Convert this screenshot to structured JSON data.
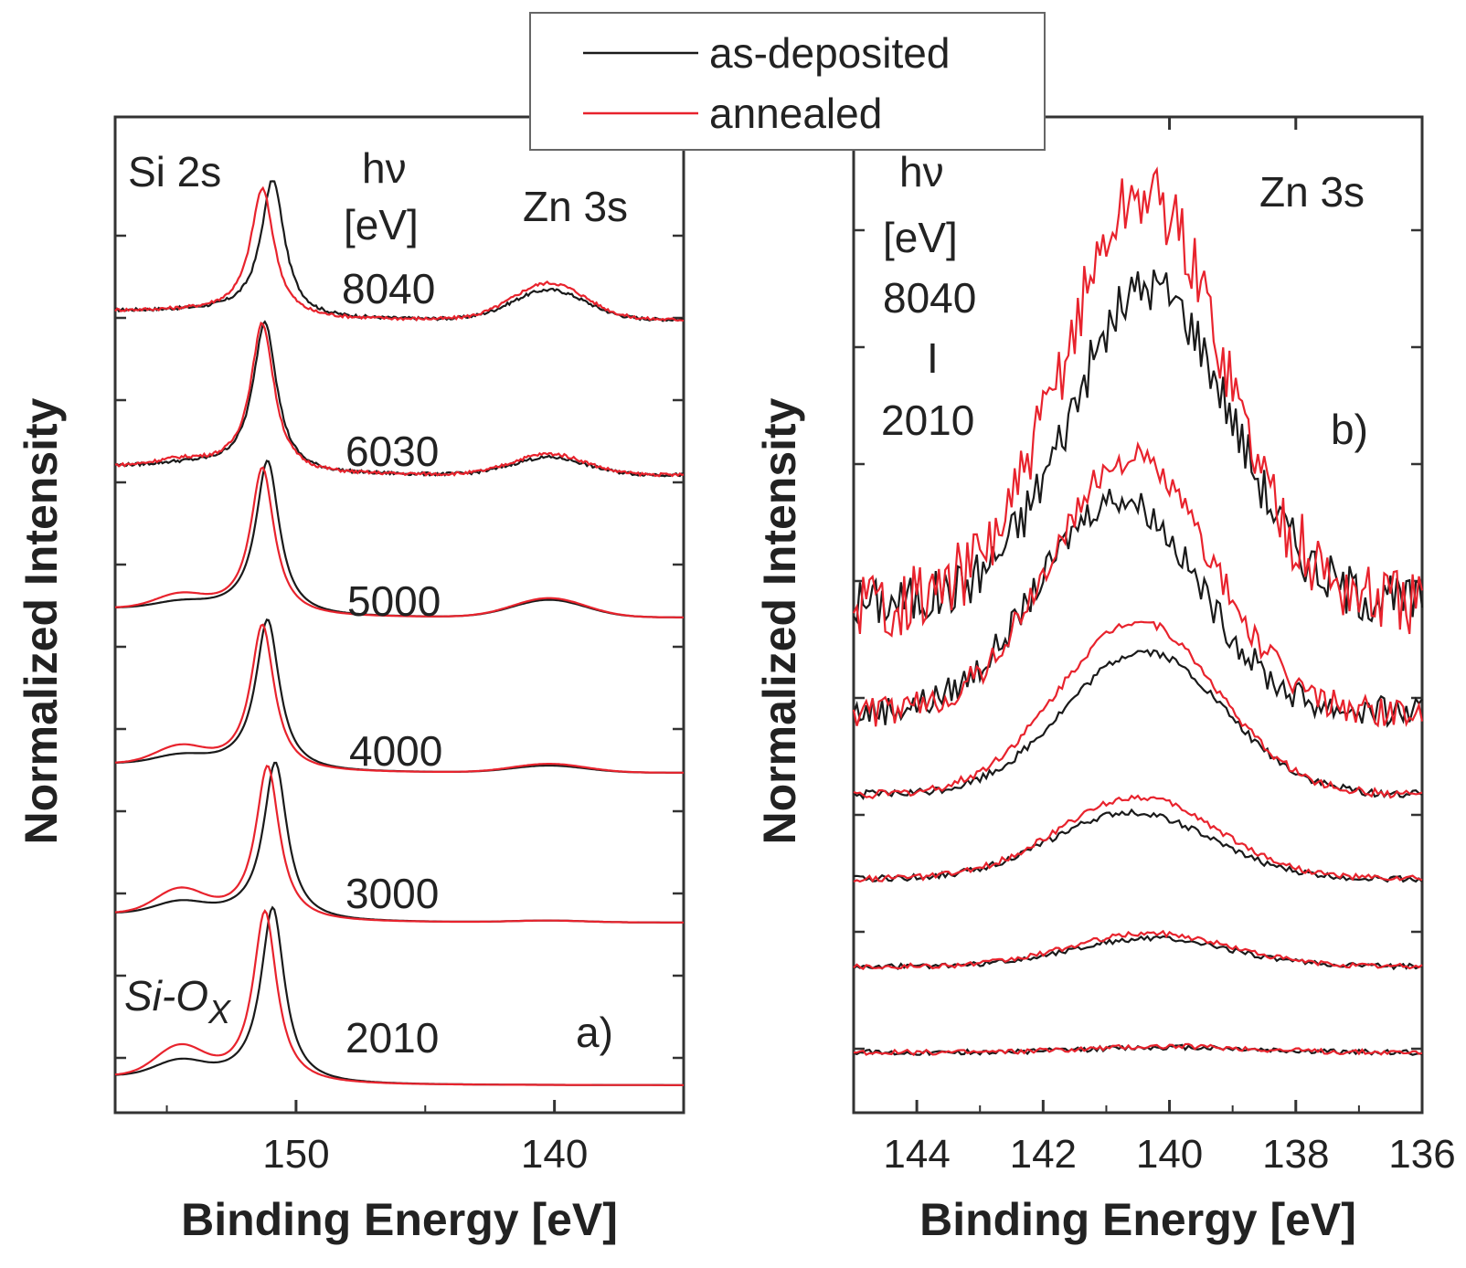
{
  "colors": {
    "as_deposited": "#1a1a1a",
    "annealed": "#e8232d",
    "axis": "#333333"
  },
  "legend": {
    "items": [
      "as-deposited",
      "annealed"
    ],
    "placement": "top-center"
  },
  "chart_data": [
    {
      "type": "line",
      "panel_label": "a)",
      "xlabel": "Binding Energy [eV]",
      "ylabel": "Normalized Intensity",
      "xlim": [
        157,
        135
      ],
      "x_reversed": true,
      "xticks": [
        150,
        140
      ],
      "peak_labels": [
        "Si 2s",
        "Zn 3s"
      ],
      "hv_header": [
        "hν",
        "[eV]"
      ],
      "oxide_label": "Si-O",
      "oxide_sub": "X",
      "photon_energies": [
        "8040",
        "6030",
        "5000",
        "4000",
        "3000",
        "2010"
      ],
      "series": [
        {
          "name": "as-deposited",
          "hv": "8040",
          "si_peak_eV": 150.9,
          "si_height": 0.78,
          "zn_height": 0.17,
          "oxide_height": 0.0
        },
        {
          "name": "annealed",
          "hv": "8040",
          "si_peak_eV": 151.3,
          "si_height": 0.73,
          "zn_height": 0.21,
          "oxide_height": 0.0
        },
        {
          "name": "as-deposited",
          "hv": "6030",
          "si_peak_eV": 151.2,
          "si_height": 0.86,
          "zn_height": 0.1,
          "oxide_height": 0.01
        },
        {
          "name": "annealed",
          "hv": "6030",
          "si_peak_eV": 151.3,
          "si_height": 0.85,
          "zn_height": 0.12,
          "oxide_height": 0.03
        },
        {
          "name": "as-deposited",
          "hv": "5000",
          "si_peak_eV": 151.1,
          "si_height": 0.88,
          "zn_height": 0.1,
          "oxide_height": 0.03
        },
        {
          "name": "annealed",
          "hv": "5000",
          "si_peak_eV": 151.3,
          "si_height": 0.84,
          "zn_height": 0.11,
          "oxide_height": 0.07
        },
        {
          "name": "as-deposited",
          "hv": "4000",
          "si_peak_eV": 151.1,
          "si_height": 0.86,
          "zn_height": 0.04,
          "oxide_height": 0.04
        },
        {
          "name": "annealed",
          "hv": "4000",
          "si_peak_eV": 151.3,
          "si_height": 0.83,
          "zn_height": 0.05,
          "oxide_height": 0.09
        },
        {
          "name": "as-deposited",
          "hv": "3000",
          "si_peak_eV": 150.8,
          "si_height": 0.9,
          "zn_height": 0.01,
          "oxide_height": 0.06
        },
        {
          "name": "annealed",
          "hv": "3000",
          "si_peak_eV": 151.1,
          "si_height": 0.88,
          "zn_height": 0.01,
          "oxide_height": 0.13
        },
        {
          "name": "as-deposited",
          "hv": "2010",
          "si_peak_eV": 150.9,
          "si_height": 1.0,
          "zn_height": 0.0,
          "oxide_height": 0.08
        },
        {
          "name": "annealed",
          "hv": "2010",
          "si_peak_eV": 151.2,
          "si_height": 0.98,
          "zn_height": 0.0,
          "oxide_height": 0.16
        }
      ]
    },
    {
      "type": "line",
      "panel_label": "b)",
      "xlabel": "Binding Energy [eV]",
      "ylabel": "Normalized Intensity",
      "xlim": [
        145,
        136
      ],
      "x_reversed": true,
      "xticks": [
        144,
        142,
        140,
        138,
        136
      ],
      "peak_labels": [
        "Zn 3s"
      ],
      "hv_header": [
        "hν",
        "[eV]",
        "8040",
        "I",
        "2010"
      ],
      "series": [
        {
          "name": "as-deposited",
          "hv": "8040",
          "peak_eV": 140.3,
          "height": 0.62,
          "noise": 0.05
        },
        {
          "name": "annealed",
          "hv": "8040",
          "peak_eV": 140.4,
          "height": 0.8,
          "noise": 0.07
        },
        {
          "name": "as-deposited",
          "hv": "6030",
          "peak_eV": 140.8,
          "height": 0.42,
          "noise": 0.03
        },
        {
          "name": "annealed",
          "hv": "6030",
          "peak_eV": 140.6,
          "height": 0.5,
          "noise": 0.03
        },
        {
          "name": "as-deposited",
          "hv": "5000",
          "peak_eV": 140.4,
          "height": 0.28,
          "noise": 0.008
        },
        {
          "name": "annealed",
          "hv": "5000",
          "peak_eV": 140.5,
          "height": 0.34,
          "noise": 0.008
        },
        {
          "name": "as-deposited",
          "hv": "4000",
          "peak_eV": 140.6,
          "height": 0.13,
          "noise": 0.006
        },
        {
          "name": "annealed",
          "hv": "4000",
          "peak_eV": 140.5,
          "height": 0.16,
          "noise": 0.006
        },
        {
          "name": "as-deposited",
          "hv": "3000",
          "peak_eV": 140.3,
          "height": 0.055,
          "noise": 0.005
        },
        {
          "name": "annealed",
          "hv": "3000",
          "peak_eV": 140.3,
          "height": 0.065,
          "noise": 0.005
        },
        {
          "name": "as-deposited",
          "hv": "2010",
          "peak_eV": 140.0,
          "height": 0.01,
          "noise": 0.005
        },
        {
          "name": "annealed",
          "hv": "2010",
          "peak_eV": 140.0,
          "height": 0.012,
          "noise": 0.005
        }
      ]
    }
  ]
}
